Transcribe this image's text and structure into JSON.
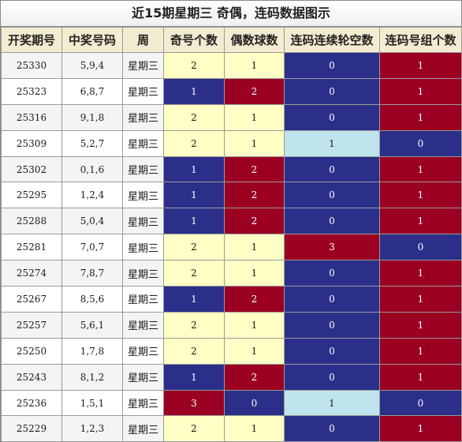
{
  "title": "近15期星期三 奇偶，连码数据图示",
  "headers": [
    "开奖期号",
    "中奖号码",
    "周",
    "奇号个数",
    "偶数球数",
    "连码连续轮空数",
    "连码号组个数"
  ],
  "colors": {
    "yellow": "#ffffc6",
    "blue": "#2b2f8a",
    "red": "#9b0023",
    "lightblue": "#bfe4ee",
    "header_bg": "#f3ecd1"
  },
  "rows": [
    {
      "issue": "25330",
      "numbers": "5,9,4",
      "weekday": "星期三",
      "odd": "2",
      "even": "1",
      "miss": "0",
      "groups": "1"
    },
    {
      "issue": "25323",
      "numbers": "6,8,7",
      "weekday": "星期三",
      "odd": "1",
      "even": "2",
      "miss": "0",
      "groups": "1"
    },
    {
      "issue": "25316",
      "numbers": "9,1,8",
      "weekday": "星期三",
      "odd": "2",
      "even": "1",
      "miss": "0",
      "groups": "1"
    },
    {
      "issue": "25309",
      "numbers": "5,2,7",
      "weekday": "星期三",
      "odd": "2",
      "even": "1",
      "miss": "1",
      "groups": "0"
    },
    {
      "issue": "25302",
      "numbers": "0,1,6",
      "weekday": "星期三",
      "odd": "1",
      "even": "2",
      "miss": "0",
      "groups": "1"
    },
    {
      "issue": "25295",
      "numbers": "1,2,4",
      "weekday": "星期三",
      "odd": "1",
      "even": "2",
      "miss": "0",
      "groups": "1"
    },
    {
      "issue": "25288",
      "numbers": "5,0,4",
      "weekday": "星期三",
      "odd": "1",
      "even": "2",
      "miss": "0",
      "groups": "1"
    },
    {
      "issue": "25281",
      "numbers": "7,0,7",
      "weekday": "星期三",
      "odd": "2",
      "even": "1",
      "miss": "3",
      "groups": "0"
    },
    {
      "issue": "25274",
      "numbers": "7,8,7",
      "weekday": "星期三",
      "odd": "2",
      "even": "1",
      "miss": "0",
      "groups": "1"
    },
    {
      "issue": "25267",
      "numbers": "8,5,6",
      "weekday": "星期三",
      "odd": "1",
      "even": "2",
      "miss": "0",
      "groups": "1"
    },
    {
      "issue": "25257",
      "numbers": "5,6,1",
      "weekday": "星期三",
      "odd": "2",
      "even": "1",
      "miss": "0",
      "groups": "1"
    },
    {
      "issue": "25250",
      "numbers": "1,7,8",
      "weekday": "星期三",
      "odd": "2",
      "even": "1",
      "miss": "0",
      "groups": "1"
    },
    {
      "issue": "25243",
      "numbers": "8,1,2",
      "weekday": "星期三",
      "odd": "1",
      "even": "2",
      "miss": "0",
      "groups": "1"
    },
    {
      "issue": "25236",
      "numbers": "1,5,1",
      "weekday": "星期三",
      "odd": "3",
      "even": "0",
      "miss": "1",
      "groups": "0"
    },
    {
      "issue": "25229",
      "numbers": "1,2,3",
      "weekday": "星期三",
      "odd": "2",
      "even": "1",
      "miss": "0",
      "groups": "1"
    }
  ]
}
